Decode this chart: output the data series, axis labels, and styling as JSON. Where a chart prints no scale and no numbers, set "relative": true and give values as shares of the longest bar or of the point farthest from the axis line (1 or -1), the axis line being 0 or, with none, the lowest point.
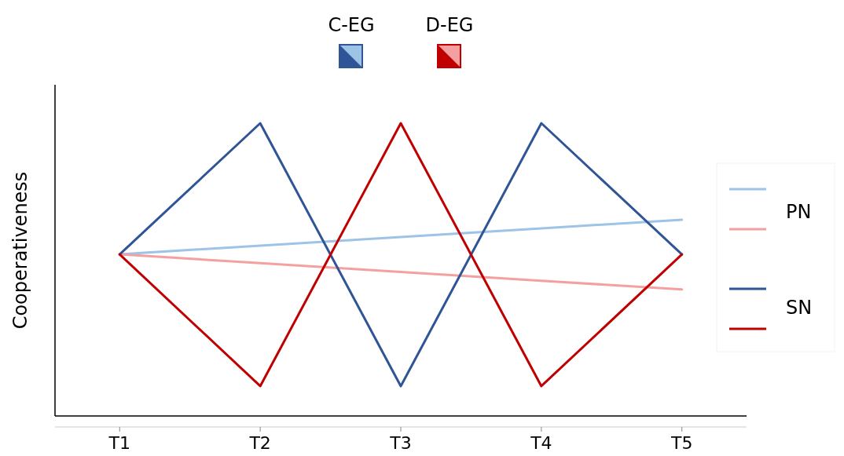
{
  "chart_data": {
    "type": "line",
    "relative": true,
    "ylabel": "Cooperativeness",
    "categories": [
      "T1",
      "T2",
      "T3",
      "T4",
      "T5"
    ],
    "series": [
      {
        "color": "#9dc3e6",
        "values": [
          0.552,
          0.582,
          0.611,
          0.641,
          0.67
        ]
      },
      {
        "color": "#f4a0a0",
        "values": [
          0.552,
          0.522,
          0.492,
          0.462,
          0.432
        ]
      },
      {
        "color": "#2f5597",
        "values": [
          0.552,
          1,
          0.102,
          1,
          0.552
        ]
      },
      {
        "color": "#c00000",
        "values": [
          0.552,
          0.102,
          1,
          0.102,
          0.552
        ]
      }
    ],
    "annotations": [
      "C-EG",
      "D-EG",
      "PN",
      "SN"
    ],
    "line_style": "solid",
    "marker": "none"
  }
}
